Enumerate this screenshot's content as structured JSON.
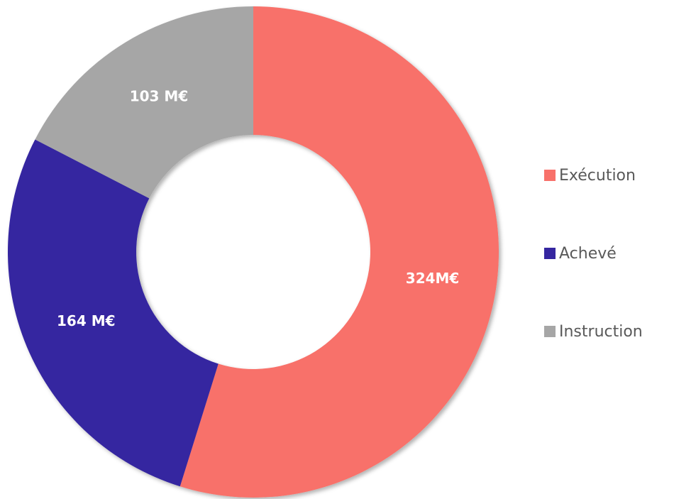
{
  "chart_data": {
    "type": "donut",
    "categories": [
      "Exécution",
      "Achevé",
      "Instruction"
    ],
    "values": [
      324,
      164,
      103
    ],
    "value_labels": [
      "324M€",
      "164 M€",
      "103 M€"
    ],
    "colors": [
      "#f8716a",
      "#3526a0",
      "#a6a6a6"
    ],
    "legend": "right"
  }
}
